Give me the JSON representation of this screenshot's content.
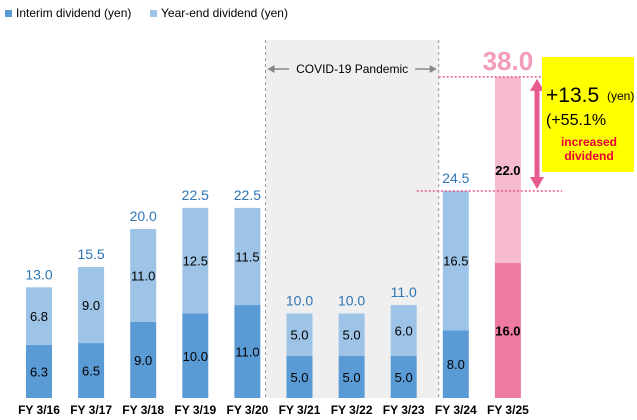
{
  "chart_data": {
    "type": "bar",
    "stacked": true,
    "categories": [
      "FY 3/16",
      "FY 3/17",
      "FY 3/18",
      "FY 3/19",
      "FY 3/20",
      "FY 3/21",
      "FY 3/22",
      "FY 3/23",
      "FY 3/24",
      "FY 3/25"
    ],
    "series": [
      {
        "name": "Interim dividend (yen)",
        "values": [
          6.3,
          6.5,
          9.0,
          10.0,
          11.0,
          5.0,
          5.0,
          5.0,
          8.0,
          16.0
        ],
        "labels": [
          "6.3",
          "6.5",
          "9.0",
          "10.0",
          "11.0",
          "5.0",
          "5.0",
          "5.0",
          "8.0",
          "16.0"
        ]
      },
      {
        "name": "Year-end dividend (yen)",
        "values": [
          6.8,
          9.0,
          11.0,
          12.5,
          11.5,
          5.0,
          5.0,
          6.0,
          16.5,
          22.0
        ],
        "labels": [
          "6.8",
          "9.0",
          "11.0",
          "12.5",
          "11.5",
          "5.0",
          "5.0",
          "6.0",
          "16.5",
          "22.0"
        ]
      }
    ],
    "totals": [
      "13.0",
      "15.5",
      "20.0",
      "22.5",
      "22.5",
      "10.0",
      "10.0",
      "11.0",
      "24.5",
      "38.0"
    ],
    "ylim": [
      0,
      40
    ],
    "grid": false,
    "legend": "top-left",
    "highlight_index": 9,
    "shaded_range": {
      "from": "FY 3/21",
      "to": "FY 3/23",
      "label": "COVID-19 Pandemic"
    },
    "callout": {
      "increase": "+13.5",
      "unit": "(yen)",
      "percent": "(+55.1%",
      "note_line1": "increased",
      "note_line2": "dividend"
    },
    "colors": {
      "interim": "#5b9bd5",
      "year_end": "#9dc3e6",
      "highlight_interim": "#ee7aa0",
      "highlight_year_end": "#f6bccd",
      "total_label": "#2e75b6",
      "highlight_total": "#f29cb7",
      "shade": "#efefef",
      "arrow": "#e75a8d",
      "callout_bg": "#ffff00",
      "callout_note": "#e8003d"
    }
  }
}
